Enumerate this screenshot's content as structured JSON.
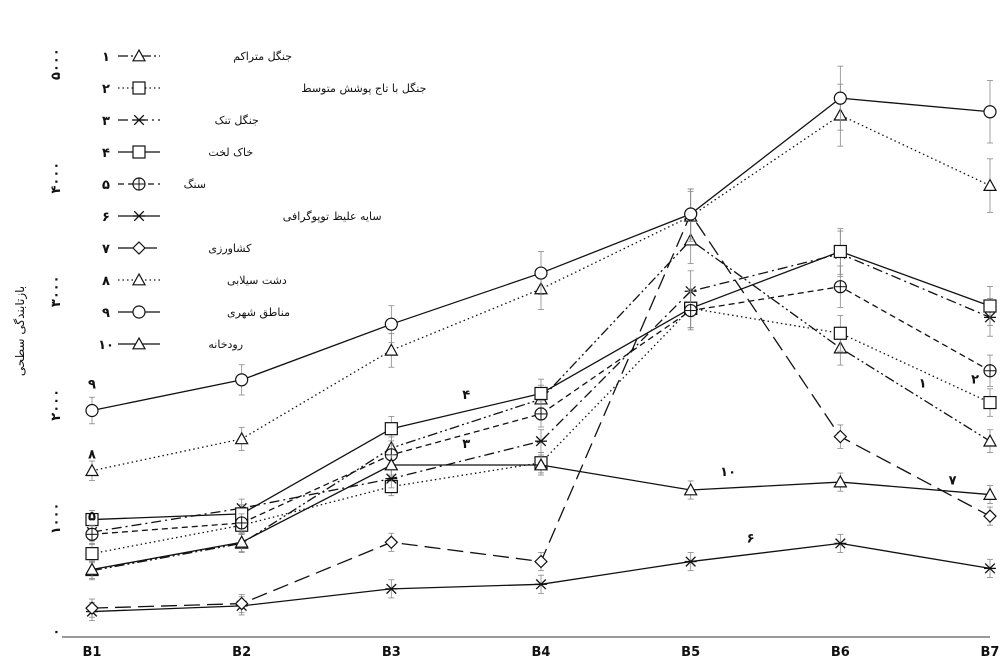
{
  "chart_data": {
    "type": "line",
    "ylabel": "بازتابندگی سطحی",
    "x": [
      "B1",
      "B2",
      "B3",
      "B4",
      "B5",
      "B6",
      "B7"
    ],
    "y_ticks": [
      "۰",
      "۱۰۰۰",
      "۲۰۰۰",
      "۳۰۰۰",
      "۴۰۰۰",
      "۵۰۰۰"
    ],
    "ylim": [
      0,
      5300
    ],
    "grid": false,
    "legend_placement": "top-left",
    "series": [
      {
        "id": "1",
        "number": "۱",
        "name": "جنگل متراکم",
        "marker": "triangle",
        "dash": "dashdotdot",
        "values": [
          540,
          780,
          1620,
          2050,
          3450,
          2500,
          1680
        ]
      },
      {
        "id": "2",
        "number": "۲",
        "name": "جنگل با تاج پوشش متوسط",
        "marker": "square",
        "dash": "dotted",
        "values": [
          690,
          940,
          1280,
          1490,
          2850,
          2630,
          2020
        ]
      },
      {
        "id": "3",
        "number": "۳",
        "name": "جنگل تنک",
        "marker": "star",
        "dash": "dashdot",
        "values": [
          880,
          1090,
          1350,
          1680,
          3000,
          3330,
          2770
        ]
      },
      {
        "id": "4",
        "number": "۴",
        "name": "خاک لخت",
        "marker": "square",
        "dash": "solid",
        "values": [
          990,
          1040,
          1790,
          2100,
          2850,
          3350,
          2870
        ]
      },
      {
        "id": "5",
        "number": "۵",
        "name": "سنگ",
        "marker": "circle-plus",
        "dash": "dashed",
        "values": [
          860,
          960,
          1560,
          1920,
          2830,
          3040,
          2300
        ]
      },
      {
        "id": "6",
        "number": "۶",
        "name": "سایه علیظ توپوگرافی",
        "marker": "star",
        "dash": "solid",
        "values": [
          180,
          230,
          380,
          420,
          620,
          780,
          560
        ]
      },
      {
        "id": "7",
        "number": "۷",
        "name": "کشاورزی",
        "marker": "diamond",
        "dash": "longdash",
        "values": [
          210,
          250,
          790,
          620,
          3680,
          1720,
          1020
        ]
      },
      {
        "id": "8",
        "number": "۸",
        "name": "دشت سیلابی",
        "marker": "triangle",
        "dash": "dotted",
        "values": [
          1420,
          1700,
          2480,
          3020,
          3660,
          4550,
          3930
        ]
      },
      {
        "id": "9",
        "number": "۹",
        "name": "مناطق شهری",
        "marker": "circle",
        "dash": "solid",
        "values": [
          1950,
          2220,
          2710,
          3160,
          3680,
          4700,
          4580
        ]
      },
      {
        "id": "10",
        "number": "۱۰",
        "name": "رودخانه",
        "marker": "triangle",
        "dash": "solid",
        "values": [
          550,
          790,
          1470,
          1470,
          1250,
          1320,
          1210
        ]
      }
    ],
    "line_labels": [
      {
        "series": "9",
        "text": "۹"
      },
      {
        "series": "5",
        "text": "۵"
      },
      {
        "series": "8",
        "text": "۸"
      },
      {
        "series": "4",
        "text": "۴"
      },
      {
        "series": "3",
        "text": "۳"
      },
      {
        "series": "10",
        "text": "۱۰"
      },
      {
        "series": "6",
        "text": "۶"
      },
      {
        "series": "2",
        "text": "۲"
      },
      {
        "series": "1",
        "text": "۱"
      },
      {
        "series": "7",
        "text": "۷"
      }
    ]
  }
}
